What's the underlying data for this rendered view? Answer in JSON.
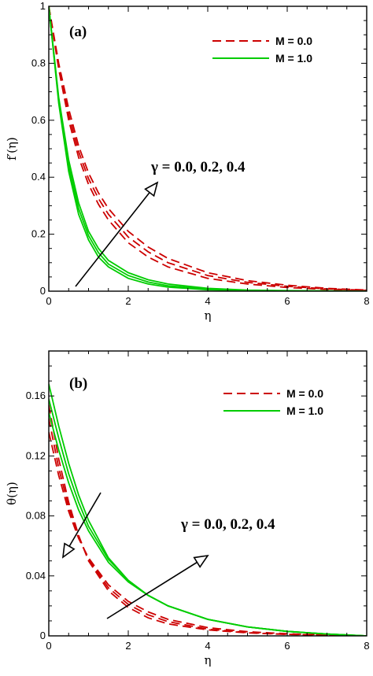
{
  "chart_data": [
    {
      "type": "line",
      "panel_label": "(a)",
      "xlabel": "η",
      "ylabel": "f′(η)",
      "xlim": [
        0,
        8
      ],
      "ylim": [
        0,
        1
      ],
      "xticks": [
        "0",
        "2",
        "4",
        "6",
        "8"
      ],
      "yticks": [
        "0",
        "0.2",
        "0.4",
        "0.6",
        "0.8",
        "1"
      ],
      "legend": [
        {
          "label": "M = 0.0",
          "color": "#cc0000",
          "style": "dashed"
        },
        {
          "label": "M = 1.0",
          "color": "#00cc00",
          "style": "solid"
        }
      ],
      "legend_position": "top-right",
      "annotation": "γ = 0.0, 0.2, 0.4",
      "series": [
        {
          "group": "M = 0.0",
          "gamma": 0.0,
          "x": [
            0,
            0.25,
            0.5,
            0.75,
            1,
            1.25,
            1.5,
            2,
            2.5,
            3,
            4,
            5,
            6,
            7,
            8
          ],
          "y": [
            1,
            0.78,
            0.6,
            0.47,
            0.375,
            0.305,
            0.25,
            0.17,
            0.12,
            0.085,
            0.045,
            0.025,
            0.013,
            0.006,
            0.002
          ]
        },
        {
          "group": "M = 0.0",
          "gamma": 0.2,
          "x": [
            0,
            0.25,
            0.5,
            0.75,
            1,
            1.25,
            1.5,
            2,
            2.5,
            3,
            4,
            5,
            6,
            7,
            8
          ],
          "y": [
            1,
            0.79,
            0.62,
            0.49,
            0.395,
            0.325,
            0.27,
            0.19,
            0.138,
            0.1,
            0.055,
            0.031,
            0.017,
            0.008,
            0.003
          ]
        },
        {
          "group": "M = 0.0",
          "gamma": 0.4,
          "x": [
            0,
            0.25,
            0.5,
            0.75,
            1,
            1.25,
            1.5,
            2,
            2.5,
            3,
            4,
            5,
            6,
            7,
            8
          ],
          "y": [
            1,
            0.8,
            0.64,
            0.51,
            0.415,
            0.345,
            0.29,
            0.21,
            0.155,
            0.115,
            0.065,
            0.037,
            0.021,
            0.01,
            0.004
          ]
        },
        {
          "group": "M = 1.0",
          "gamma": 0.0,
          "x": [
            0,
            0.25,
            0.5,
            0.75,
            1,
            1.25,
            1.5,
            2,
            2.5,
            3,
            4,
            5,
            6,
            7,
            8
          ],
          "y": [
            1,
            0.66,
            0.42,
            0.27,
            0.18,
            0.12,
            0.085,
            0.045,
            0.025,
            0.014,
            0.005,
            0.002,
            0.001,
            0,
            0
          ]
        },
        {
          "group": "M = 1.0",
          "gamma": 0.2,
          "x": [
            0,
            0.25,
            0.5,
            0.75,
            1,
            1.25,
            1.5,
            2,
            2.5,
            3,
            4,
            5,
            6,
            7,
            8
          ],
          "y": [
            1,
            0.67,
            0.44,
            0.29,
            0.195,
            0.135,
            0.095,
            0.055,
            0.032,
            0.019,
            0.007,
            0.003,
            0.001,
            0.0005,
            0
          ]
        },
        {
          "group": "M = 1.0",
          "gamma": 0.4,
          "x": [
            0,
            0.25,
            0.5,
            0.75,
            1,
            1.25,
            1.5,
            2,
            2.5,
            3,
            4,
            5,
            6,
            7,
            8
          ],
          "y": [
            1,
            0.68,
            0.46,
            0.31,
            0.21,
            0.15,
            0.108,
            0.065,
            0.04,
            0.025,
            0.01,
            0.004,
            0.002,
            0.001,
            0
          ]
        }
      ]
    },
    {
      "type": "line",
      "panel_label": "(b)",
      "xlabel": "η",
      "ylabel": "θ(η)",
      "xlim": [
        0,
        8
      ],
      "ylim": [
        0,
        0.19
      ],
      "xticks": [
        "0",
        "2",
        "4",
        "6",
        "8"
      ],
      "yticks": [
        "0",
        "0.04",
        "0.08",
        "0.12",
        "0.16"
      ],
      "legend": [
        {
          "label": "M = 0.0",
          "color": "#cc0000",
          "style": "dashed"
        },
        {
          "label": "M = 1.0",
          "color": "#00cc00",
          "style": "solid"
        }
      ],
      "legend_position": "top-right",
      "annotation": "γ = 0.0, 0.2, 0.4",
      "series": [
        {
          "group": "M = 0.0",
          "gamma": 0.0,
          "x": [
            0,
            0.25,
            0.5,
            0.75,
            1,
            1.5,
            2,
            2.5,
            3,
            4,
            5,
            6,
            7,
            8
          ],
          "y": [
            0.154,
            0.118,
            0.089,
            0.067,
            0.05,
            0.03,
            0.019,
            0.012,
            0.008,
            0.004,
            0.002,
            0.001,
            0.0005,
            0
          ]
        },
        {
          "group": "M = 0.0",
          "gamma": 0.2,
          "x": [
            0,
            0.25,
            0.5,
            0.75,
            1,
            1.5,
            2,
            2.5,
            3,
            4,
            5,
            6,
            7,
            8
          ],
          "y": [
            0.145,
            0.112,
            0.086,
            0.066,
            0.051,
            0.032,
            0.021,
            0.014,
            0.0095,
            0.0045,
            0.0022,
            0.001,
            0.0005,
            0
          ]
        },
        {
          "group": "M = 0.0",
          "gamma": 0.4,
          "x": [
            0,
            0.25,
            0.5,
            0.75,
            1,
            1.5,
            2,
            2.5,
            3,
            4,
            5,
            6,
            7,
            8
          ],
          "y": [
            0.136,
            0.107,
            0.083,
            0.065,
            0.052,
            0.034,
            0.023,
            0.016,
            0.011,
            0.0055,
            0.0028,
            0.0014,
            0.0006,
            0
          ]
        },
        {
          "group": "M = 1.0",
          "gamma": 0.0,
          "x": [
            0,
            0.25,
            0.5,
            0.75,
            1,
            1.5,
            2,
            2.5,
            3,
            4,
            5,
            6,
            7,
            8
          ],
          "y": [
            0.168,
            0.14,
            0.115,
            0.094,
            0.077,
            0.052,
            0.037,
            0.027,
            0.02,
            0.011,
            0.006,
            0.003,
            0.0012,
            0
          ]
        },
        {
          "group": "M = 1.0",
          "gamma": 0.2,
          "x": [
            0,
            0.25,
            0.5,
            0.75,
            1,
            1.5,
            2,
            2.5,
            3,
            4,
            5,
            6,
            7,
            8
          ],
          "y": [
            0.158,
            0.132,
            0.108,
            0.089,
            0.073,
            0.051,
            0.037,
            0.027,
            0.02,
            0.011,
            0.006,
            0.003,
            0.0012,
            0
          ]
        },
        {
          "group": "M = 1.0",
          "gamma": 0.4,
          "x": [
            0,
            0.25,
            0.5,
            0.75,
            1,
            1.5,
            2,
            2.5,
            3,
            4,
            5,
            6,
            7,
            8
          ],
          "y": [
            0.149,
            0.124,
            0.102,
            0.084,
            0.07,
            0.049,
            0.036,
            0.027,
            0.02,
            0.011,
            0.006,
            0.003,
            0.0012,
            0
          ]
        }
      ]
    }
  ]
}
